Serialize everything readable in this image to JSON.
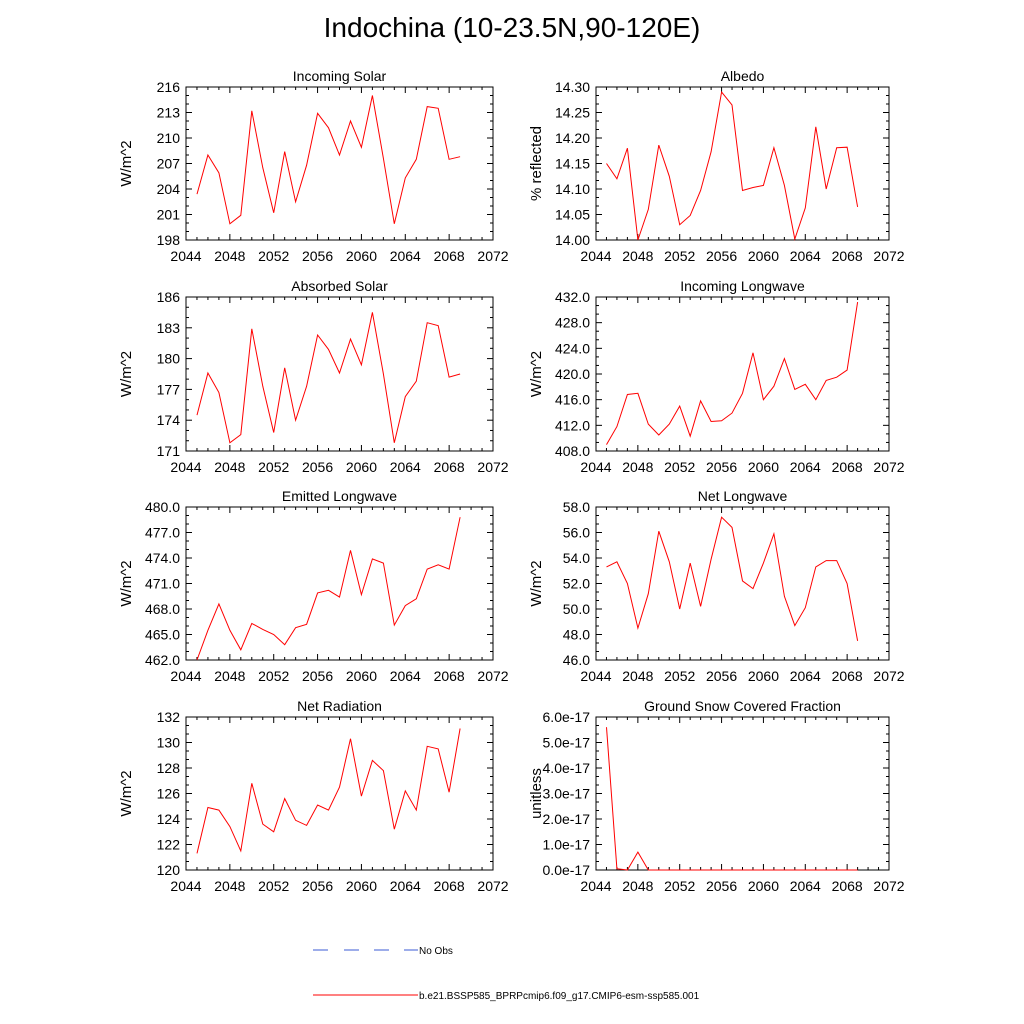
{
  "title": "Indochina (10-23.5N,90-120E)",
  "colors": {
    "model": "#ff0000",
    "obs": "#3b5bd6",
    "axis": "#000000"
  },
  "legend": {
    "obs_label": "No Obs",
    "model_label": "b.e21.BSSP585_BPRPcmip6.f09_g17.CMIP6-esm-ssp585.001"
  },
  "chart_data": [
    {
      "type": "line",
      "title": "Incoming Solar",
      "ylabel": "W/m^2",
      "xlim": [
        2044,
        2072
      ],
      "ylim": [
        198,
        216
      ],
      "xticks": [
        2044,
        2048,
        2052,
        2056,
        2060,
        2064,
        2068,
        2072
      ],
      "yticks": [
        "198",
        "201",
        "204",
        "207",
        "210",
        "213",
        "216"
      ],
      "series": [
        {
          "x": [
            2045,
            2046,
            2047,
            2048,
            2049,
            2050,
            2051,
            2052,
            2053,
            2054,
            2055,
            2056,
            2057,
            2058,
            2059,
            2060,
            2061,
            2062,
            2063,
            2064,
            2065,
            2066,
            2067,
            2068,
            2069
          ],
          "values": [
            203.4,
            208.0,
            205.9,
            199.9,
            200.9,
            213.2,
            206.5,
            201.2,
            208.4,
            202.5,
            206.8,
            212.9,
            211.2,
            208.0,
            212.0,
            208.9,
            215.0,
            207.6,
            199.9,
            205.3,
            207.5,
            213.7,
            213.5,
            207.5,
            207.8
          ]
        }
      ]
    },
    {
      "type": "line",
      "title": "Albedo",
      "ylabel": "% reflected",
      "xlim": [
        2044,
        2072
      ],
      "ylim": [
        14.0,
        14.3
      ],
      "xticks": [
        2044,
        2048,
        2052,
        2056,
        2060,
        2064,
        2068,
        2072
      ],
      "yticks": [
        "14.00",
        "14.05",
        "14.10",
        "14.15",
        "14.20",
        "14.25",
        "14.30"
      ],
      "series": [
        {
          "x": [
            2045,
            2046,
            2047,
            2048,
            2049,
            2050,
            2051,
            2052,
            2053,
            2054,
            2055,
            2056,
            2057,
            2058,
            2059,
            2060,
            2061,
            2062,
            2063,
            2064,
            2065,
            2066,
            2067,
            2068,
            2069
          ],
          "values": [
            14.15,
            14.12,
            14.18,
            14.0,
            14.06,
            14.186,
            14.125,
            14.03,
            14.048,
            14.097,
            14.173,
            14.29,
            14.265,
            14.097,
            14.103,
            14.107,
            14.181,
            14.107,
            14.002,
            14.063,
            14.222,
            14.1,
            14.181,
            14.182,
            14.065
          ]
        }
      ]
    },
    {
      "type": "line",
      "title": "Absorbed Solar",
      "ylabel": "W/m^2",
      "xlim": [
        2044,
        2072
      ],
      "ylim": [
        171,
        186
      ],
      "xticks": [
        2044,
        2048,
        2052,
        2056,
        2060,
        2064,
        2068,
        2072
      ],
      "yticks": [
        "171",
        "174",
        "177",
        "180",
        "183",
        "186"
      ],
      "series": [
        {
          "x": [
            2045,
            2046,
            2047,
            2048,
            2049,
            2050,
            2051,
            2052,
            2053,
            2054,
            2055,
            2056,
            2057,
            2058,
            2059,
            2060,
            2061,
            2062,
            2063,
            2064,
            2065,
            2066,
            2067,
            2068,
            2069
          ],
          "values": [
            174.5,
            178.6,
            176.7,
            171.8,
            172.6,
            182.9,
            177.3,
            172.8,
            179.1,
            174.0,
            177.3,
            182.3,
            180.9,
            178.6,
            181.9,
            179.4,
            184.5,
            178.5,
            171.8,
            176.3,
            177.8,
            183.5,
            183.2,
            178.2,
            178.5
          ]
        }
      ]
    },
    {
      "type": "line",
      "title": "Incoming Longwave",
      "ylabel": "W/m^2",
      "xlim": [
        2044,
        2072
      ],
      "ylim": [
        408,
        432
      ],
      "xticks": [
        2044,
        2048,
        2052,
        2056,
        2060,
        2064,
        2068,
        2072
      ],
      "yticks": [
        "408.0",
        "412.0",
        "416.0",
        "420.0",
        "424.0",
        "428.0",
        "432.0"
      ],
      "series": [
        {
          "x": [
            2045,
            2046,
            2047,
            2048,
            2049,
            2050,
            2051,
            2052,
            2053,
            2054,
            2055,
            2056,
            2057,
            2058,
            2059,
            2060,
            2061,
            2062,
            2063,
            2064,
            2065,
            2066,
            2067,
            2068,
            2069
          ],
          "values": [
            409.0,
            411.8,
            416.8,
            417.0,
            412.2,
            410.5,
            412.2,
            415.0,
            410.3,
            415.8,
            412.6,
            412.7,
            413.9,
            417.0,
            423.3,
            416.0,
            418.1,
            422.4,
            417.6,
            418.4,
            416.0,
            419.0,
            419.5,
            420.6,
            431.2
          ]
        }
      ]
    },
    {
      "type": "line",
      "title": "Emitted Longwave",
      "ylabel": "W/m^2",
      "xlim": [
        2044,
        2072
      ],
      "ylim": [
        462,
        480
      ],
      "xticks": [
        2044,
        2048,
        2052,
        2056,
        2060,
        2064,
        2068,
        2072
      ],
      "yticks": [
        "462.0",
        "465.0",
        "468.0",
        "471.0",
        "474.0",
        "477.0",
        "480.0"
      ],
      "series": [
        {
          "x": [
            2045,
            2046,
            2047,
            2048,
            2049,
            2050,
            2051,
            2052,
            2053,
            2054,
            2055,
            2056,
            2057,
            2058,
            2059,
            2060,
            2061,
            2062,
            2063,
            2064,
            2065,
            2066,
            2067,
            2068,
            2069
          ],
          "values": [
            462.0,
            465.5,
            468.6,
            465.5,
            463.2,
            466.3,
            465.6,
            465.0,
            463.8,
            465.8,
            466.2,
            469.9,
            470.2,
            469.4,
            474.9,
            469.7,
            473.9,
            473.4,
            466.1,
            468.4,
            469.2,
            472.7,
            473.2,
            472.7,
            478.8
          ]
        }
      ]
    },
    {
      "type": "line",
      "title": "Net Longwave",
      "ylabel": "W/m^2",
      "xlim": [
        2044,
        2072
      ],
      "ylim": [
        46,
        58
      ],
      "xticks": [
        2044,
        2048,
        2052,
        2056,
        2060,
        2064,
        2068,
        2072
      ],
      "yticks": [
        "46.0",
        "48.0",
        "50.0",
        "52.0",
        "54.0",
        "56.0",
        "58.0"
      ],
      "series": [
        {
          "x": [
            2045,
            2046,
            2047,
            2048,
            2049,
            2050,
            2051,
            2052,
            2053,
            2054,
            2055,
            2056,
            2057,
            2058,
            2059,
            2060,
            2061,
            2062,
            2063,
            2064,
            2065,
            2066,
            2067,
            2068,
            2069
          ],
          "values": [
            53.3,
            53.7,
            52.0,
            48.5,
            51.2,
            56.1,
            53.7,
            50.0,
            53.6,
            50.2,
            53.9,
            57.2,
            56.4,
            52.2,
            51.6,
            53.6,
            55.9,
            51.0,
            48.7,
            50.1,
            53.3,
            53.8,
            53.8,
            52.0,
            47.5
          ]
        }
      ]
    },
    {
      "type": "line",
      "title": "Net Radiation",
      "ylabel": "W/m^2",
      "xlim": [
        2044,
        2072
      ],
      "ylim": [
        120,
        132
      ],
      "xticks": [
        2044,
        2048,
        2052,
        2056,
        2060,
        2064,
        2068,
        2072
      ],
      "yticks": [
        "120",
        "122",
        "124",
        "126",
        "128",
        "130",
        "132"
      ],
      "series": [
        {
          "x": [
            2045,
            2046,
            2047,
            2048,
            2049,
            2050,
            2051,
            2052,
            2053,
            2054,
            2055,
            2056,
            2057,
            2058,
            2059,
            2060,
            2061,
            2062,
            2063,
            2064,
            2065,
            2066,
            2067,
            2068,
            2069
          ],
          "values": [
            121.3,
            124.9,
            124.7,
            123.4,
            121.5,
            126.8,
            123.6,
            123.0,
            125.6,
            123.9,
            123.5,
            125.1,
            124.7,
            126.5,
            130.3,
            125.8,
            128.6,
            127.8,
            123.2,
            126.2,
            124.7,
            129.7,
            129.5,
            126.1,
            131.1
          ]
        }
      ]
    },
    {
      "type": "line",
      "title": "Ground Snow Covered Fraction",
      "ylabel": "unitless",
      "xlim": [
        2044,
        2072
      ],
      "ylim": [
        0,
        6e-17
      ],
      "xticks": [
        2044,
        2048,
        2052,
        2056,
        2060,
        2064,
        2068,
        2072
      ],
      "yticks": [
        "0.0e-17",
        "1.0e-17",
        "2.0e-17",
        "3.0e-17",
        "4.0e-17",
        "5.0e-17",
        "6.0e-17"
      ],
      "series": [
        {
          "x": [
            2045,
            2046,
            2047,
            2048,
            2049,
            2050,
            2051,
            2052,
            2053,
            2054,
            2055,
            2056,
            2057,
            2058,
            2059,
            2060,
            2061,
            2062,
            2063,
            2064,
            2065,
            2066,
            2067,
            2068,
            2069
          ],
          "values": [
            5.6e-17,
            5e-19,
            0,
            7e-18,
            0,
            0,
            0,
            0,
            0,
            0,
            0,
            0,
            0,
            0,
            0,
            0,
            0,
            0,
            0,
            0,
            0,
            0,
            0,
            0,
            0
          ]
        }
      ]
    }
  ]
}
